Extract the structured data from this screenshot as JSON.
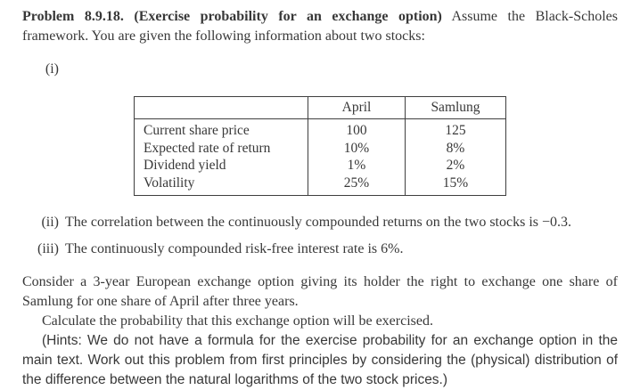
{
  "doc": {
    "problem": {
      "bold_lead": "Problem 8.9.18. (Exercise probability for an exchange option)",
      "intro_rest": " Assume the Black-Scholes framework. You are given the following information about two stocks:"
    },
    "items": [
      {
        "label": "(i)",
        "text": ""
      },
      {
        "label": "(ii)",
        "text": "The correlation between the continuously compounded returns on the two stocks is −0.3."
      },
      {
        "label": "(iii)",
        "text": "The continuously compounded risk-free interest rate is 6%."
      }
    ],
    "body": {
      "consider": "Consider a 3-year European exchange option giving its holder the right to exchange one share of Samlung for one share of April after three years.",
      "calculate": "Calculate the probability that this exchange option will be exercised.",
      "hints": "(Hints: We do not have a formula for the exercise probability for an exchange option in the main text. Work out this problem from first principles by considering the (physical) distribution of the difference between the natural logarithms of the two stock prices.)"
    }
  },
  "table": {
    "columns": [
      "",
      "April",
      "Samlung"
    ],
    "rows": [
      {
        "label": "Current share price",
        "april": "100",
        "samlung": "125"
      },
      {
        "label": "Expected rate of return",
        "april": "10%",
        "samlung": "8%"
      },
      {
        "label": "Dividend yield",
        "april": "1%",
        "samlung": "2%"
      },
      {
        "label": "Volatility",
        "april": "25%",
        "samlung": "15%"
      }
    ]
  },
  "colors": {
    "text": "#383838",
    "background": "#ffffff",
    "table_border": "#3f3f3f"
  }
}
